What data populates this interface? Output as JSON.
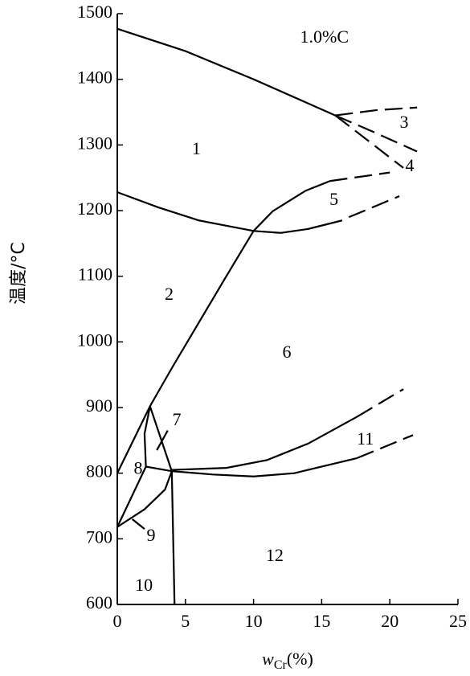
{
  "chart_data": {
    "type": "line",
    "ylabel": "温度/°C",
    "xlabel": [
      "w",
      "Cr",
      "(%)"
    ],
    "xlim": [
      0,
      25
    ],
    "xticks": [
      0,
      5,
      10,
      15,
      20,
      25
    ],
    "ylim": [
      600,
      1500
    ],
    "yticks": [
      600,
      700,
      800,
      900,
      1000,
      1100,
      1200,
      1300,
      1400,
      1500
    ],
    "color": "#000000",
    "series": [
      {
        "dash": false,
        "x": [
          0,
          5,
          10,
          16
        ],
        "y": [
          1477,
          1443,
          1400,
          1345
        ]
      },
      {
        "dash": true,
        "x": [
          16,
          19,
          22
        ],
        "y": [
          1345,
          1353,
          1357
        ]
      },
      {
        "dash": true,
        "x": [
          16,
          19,
          22
        ],
        "y": [
          1345,
          1318,
          1290
        ]
      },
      {
        "dash": true,
        "x": [
          16,
          18.5,
          21
        ],
        "y": [
          1345,
          1305,
          1265
        ]
      },
      {
        "dash": false,
        "x": [
          0,
          3,
          6,
          10,
          12,
          14,
          16.5
        ],
        "y": [
          1228,
          1205,
          1185,
          1169,
          1166,
          1172,
          1185
        ]
      },
      {
        "dash": true,
        "x": [
          17,
          20.7
        ],
        "y": [
          1190,
          1222
        ]
      },
      {
        "dash": false,
        "x": [
          10,
          11.4,
          13.8,
          15.6
        ],
        "y": [
          1169,
          1199,
          1230,
          1245
        ]
      },
      {
        "dash": true,
        "x": [
          15.6,
          20
        ],
        "y": [
          1245,
          1258
        ]
      },
      {
        "dash": false,
        "x": [
          10,
          8,
          6,
          4,
          2.4
        ],
        "y": [
          1169,
          1100,
          1030,
          960,
          902
        ]
      },
      {
        "dash": false,
        "x": [
          2.4,
          0
        ],
        "y": [
          902,
          800
        ]
      },
      {
        "dash": false,
        "x": [
          2.4,
          4
        ],
        "y": [
          902,
          803
        ]
      },
      {
        "dash": false,
        "x": [
          2.4,
          2,
          2.1
        ],
        "y": [
          902,
          860,
          810
        ]
      },
      {
        "dash": false,
        "x": [
          2.1,
          4,
          7,
          10,
          13,
          16,
          17.6
        ],
        "y": [
          810,
          803,
          798,
          795,
          800,
          815,
          823
        ]
      },
      {
        "dash": true,
        "x": [
          17.6,
          21.7
        ],
        "y": [
          823,
          858
        ]
      },
      {
        "dash": false,
        "x": [
          4,
          8,
          11,
          14,
          17.6
        ],
        "y": [
          805,
          808,
          820,
          845,
          886
        ]
      },
      {
        "dash": true,
        "x": [
          17.6,
          21
        ],
        "y": [
          886,
          928
        ]
      },
      {
        "dash": false,
        "x": [
          0,
          2.1
        ],
        "y": [
          718,
          810
        ]
      },
      {
        "dash": false,
        "x": [
          0,
          2,
          3.5,
          4
        ],
        "y": [
          718,
          745,
          775,
          803
        ]
      },
      {
        "dash": false,
        "x": [
          4,
          4.2
        ],
        "y": [
          803,
          600
        ]
      },
      {
        "dash": false,
        "x": [
          3.7,
          2.9
        ],
        "y": [
          865,
          835
        ]
      },
      {
        "dash": false,
        "x": [
          1.1,
          2
        ],
        "y": [
          730,
          715
        ]
      }
    ],
    "annotations": [
      {
        "text": "1.0%C",
        "x": 15.2,
        "y": 1462
      },
      {
        "text": "1",
        "x": 5.8,
        "y": 1292
      },
      {
        "text": "2",
        "x": 3.8,
        "y": 1070
      },
      {
        "text": "3",
        "x": 21.05,
        "y": 1332
      },
      {
        "text": "4",
        "x": 21.46,
        "y": 1266
      },
      {
        "text": "5",
        "x": 15.9,
        "y": 1215
      },
      {
        "text": "6",
        "x": 12.44,
        "y": 982
      },
      {
        "text": "7",
        "x": 4.36,
        "y": 879
      },
      {
        "text": "8",
        "x": 1.53,
        "y": 805
      },
      {
        "text": "9",
        "x": 2.48,
        "y": 703
      },
      {
        "text": "10",
        "x": 1.95,
        "y": 627
      },
      {
        "text": "11",
        "x": 18.2,
        "y": 850
      },
      {
        "text": "12",
        "x": 11.55,
        "y": 672
      }
    ]
  }
}
